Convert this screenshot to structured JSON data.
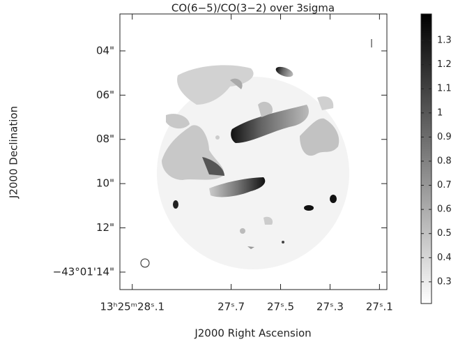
{
  "chart_data": {
    "type": "image",
    "title": "CO(6−5)/CO(3−2) over 3sigma",
    "xlabel": "J2000 Right Ascension",
    "ylabel": "J2000 Declination",
    "xlim": [
      28.15,
      27.07
    ],
    "xticks": [
      {
        "value": 28.1,
        "label": "13ʰ25ᵐ28ˢ.1"
      },
      {
        "value": 27.7,
        "label": "27ˢ.7"
      },
      {
        "value": 27.5,
        "label": "27ˢ.5"
      },
      {
        "value": 27.3,
        "label": "27ˢ.3"
      },
      {
        "value": 27.1,
        "label": "27ˢ.1"
      }
    ],
    "ylim": [
      2.33,
      14.79
    ],
    "yticks": [
      {
        "value": 4,
        "label": "04\""
      },
      {
        "value": 6,
        "label": "06\""
      },
      {
        "value": 8,
        "label": "08\""
      },
      {
        "value": 10,
        "label": "10\""
      },
      {
        "value": 12,
        "label": "12\""
      },
      {
        "value": 14,
        "label": "−43°01'14\""
      }
    ],
    "colorbar": {
      "clim": [
        0.21,
        1.41
      ],
      "colormap": [
        "#ffffff",
        "#000000"
      ],
      "ticks": [
        0.3,
        0.4,
        0.5,
        0.6,
        0.7,
        0.8,
        0.9,
        1,
        1.1,
        1.2,
        1.3
      ]
    }
  }
}
